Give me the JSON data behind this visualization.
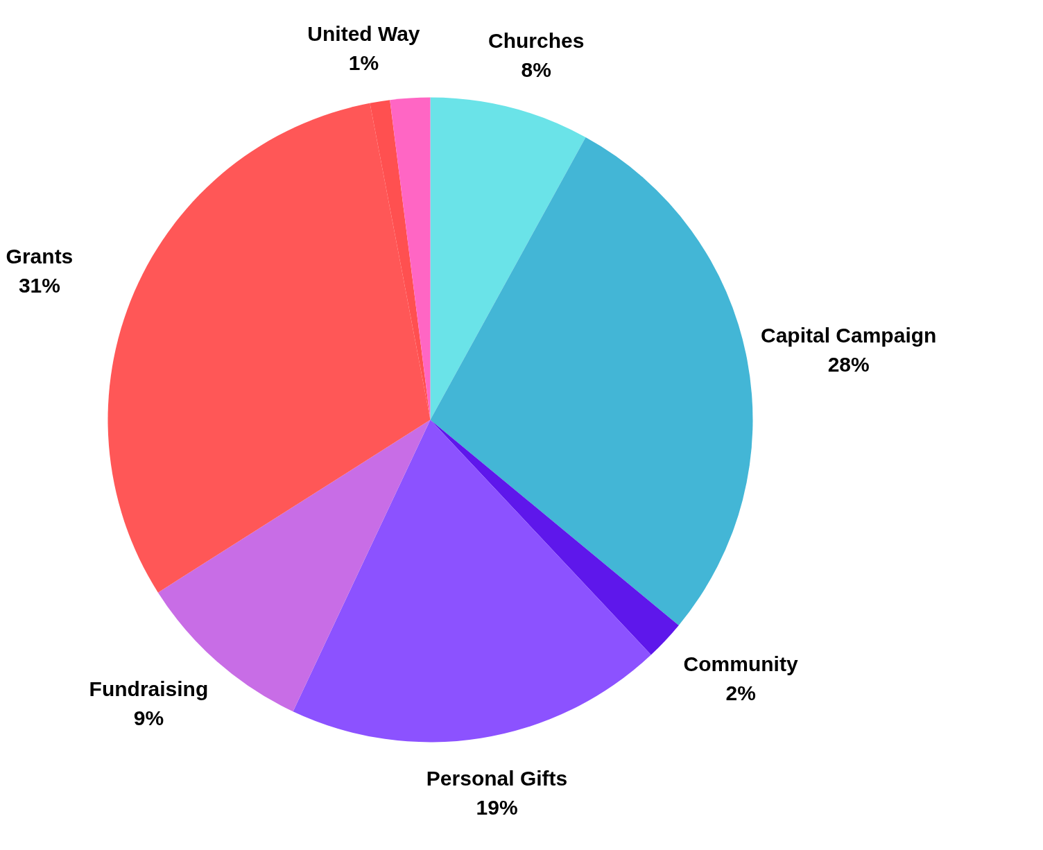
{
  "chart_data": {
    "type": "pie",
    "categories": [
      "Churches",
      "Capital Campaign",
      "Community",
      "Personal Gifts",
      "Fundraising",
      "Grants",
      "United Way",
      null
    ],
    "values": [
      8,
      28,
      2,
      19,
      9,
      31,
      1,
      2
    ],
    "colors": [
      "#6ae3e8",
      "#43b6d6",
      "#5e17eb",
      "#8c52ff",
      "#c86de6",
      "#ff5757",
      "#ff5050",
      "#ff66c4"
    ],
    "value_labels": [
      "8%",
      "28%",
      "2%",
      "19%",
      "9%",
      "31%",
      "1%",
      null
    ]
  }
}
